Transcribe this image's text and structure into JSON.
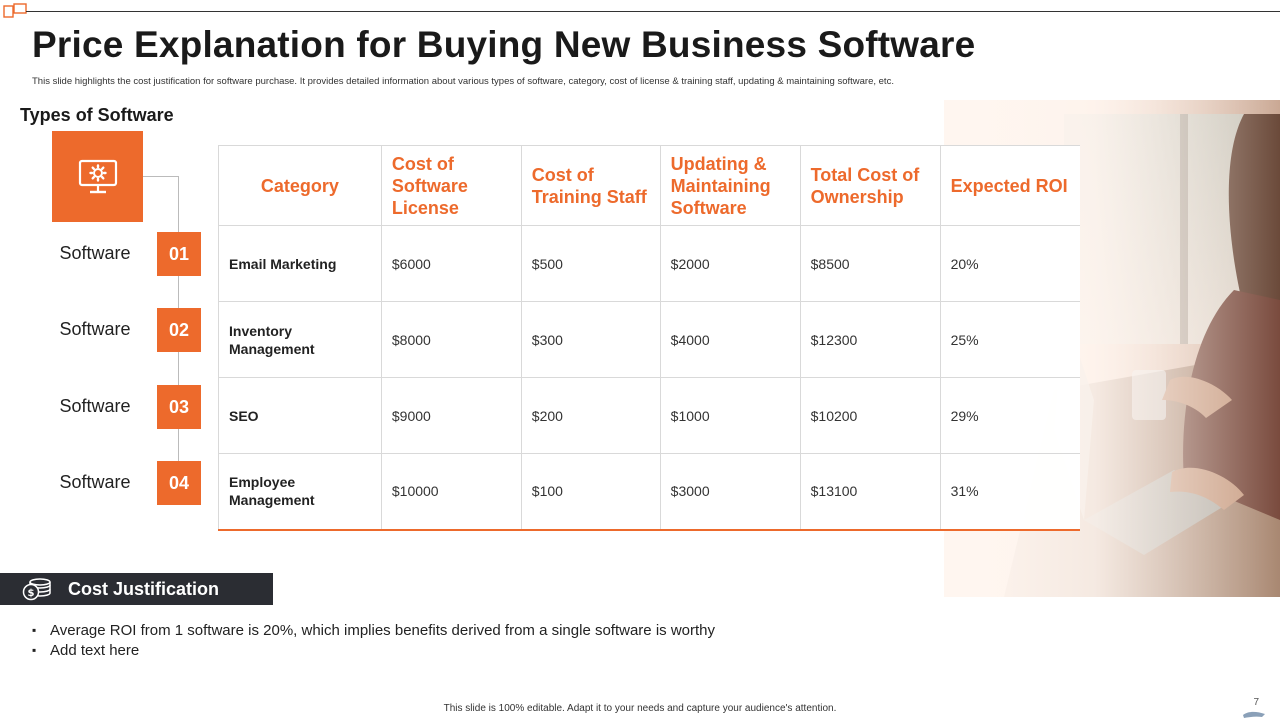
{
  "header": {
    "title": "Price Explanation for Buying New Business Software",
    "subtitle": "This slide highlights the cost justification for software purchase. It provides detailed information about various types of software, category, cost of license & training staff, updating & maintaining  software, etc."
  },
  "sidebar": {
    "heading": "Types of Software",
    "icon": "computer-gear-icon",
    "items": [
      {
        "label": "Software",
        "number": "01"
      },
      {
        "label": "Software",
        "number": "02"
      },
      {
        "label": "Software",
        "number": "03"
      },
      {
        "label": "Software",
        "number": "04"
      }
    ]
  },
  "table": {
    "headers": [
      "Category",
      "Cost of Software License",
      "Cost of Training Staff",
      "Updating & Maintaining Software",
      "Total Cost of Ownership",
      "Expected ROI"
    ],
    "rows": [
      [
        "Email Marketing",
        "$6000",
        "$500",
        "$2000",
        "$8500",
        "20%"
      ],
      [
        "Inventory Management",
        "$8000",
        "$300",
        "$4000",
        "$12300",
        "25%"
      ],
      [
        "SEO",
        "$9000",
        "$200",
        "$1000",
        "$10200",
        "29%"
      ],
      [
        "Employee Management",
        "$10000",
        "$100",
        "$3000",
        "$13100",
        "31%"
      ]
    ]
  },
  "cost_justification": {
    "title": "Cost Justification",
    "icon": "dollar-coins-icon",
    "bullets": [
      "Average ROI from 1 software is 20%, which implies benefits derived from a single software is worthy",
      "Add text here"
    ]
  },
  "footer": {
    "text": "This slide is 100% editable.  Adapt it to your needs and capture your audience's attention.",
    "page_number": "7"
  },
  "colors": {
    "accent": "#ED6A2C",
    "dark_bar": "#2B2D33"
  }
}
